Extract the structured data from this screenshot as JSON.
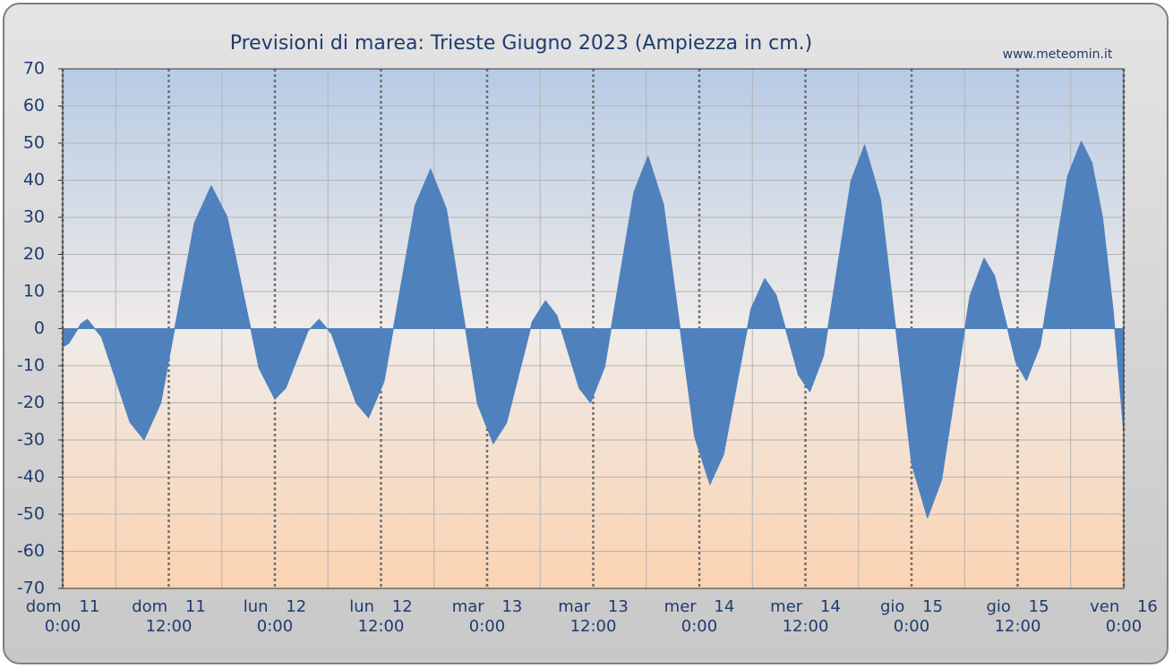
{
  "chart_data": {
    "type": "area",
    "title": "Previsioni di marea: Trieste Giugno 2023 (Ampiezza in cm.)",
    "source": "www.meteomin.it",
    "color": "#4f81bd",
    "x": [
      0,
      0.7,
      1.4,
      2.1,
      2.8,
      4.4,
      6.0,
      7.6,
      9.2,
      11.1,
      13.0,
      14.9,
      16.8,
      18.6,
      20.4,
      22.2,
      24.0,
      25.25,
      26.5,
      27.75,
      29.0,
      30.4,
      31.8,
      33.2,
      34.6,
      36.35,
      38.1,
      39.85,
      41.6,
      43.4,
      45.15,
      46.9,
      48.7,
      50.2,
      51.65,
      53.1,
      54.6,
      55.9,
      57.15,
      58.4,
      59.7,
      61.3,
      62.95,
      64.6,
      66.2,
      67.95,
      69.7,
      71.45,
      73.2,
      74.75,
      76.3,
      77.85,
      79.4,
      80.7,
      81.95,
      83.2,
      84.5,
      86.05,
      87.6,
      89.15,
      90.7,
      92.5,
      94.25,
      96.0,
      97.8,
      99.4,
      101.0,
      102.6,
      104.2,
      105.4,
      106.6,
      107.8,
      109.0,
      110.55,
      112.1,
      113.65,
      115.2,
      116.4,
      117.6,
      118.8,
      120
    ],
    "values": [
      -5,
      -3.9,
      -1.25,
      1.4,
      2.5,
      -2.3,
      -13.75,
      -25.2,
      -30,
      -20,
      4.25,
      28.5,
      38.5,
      30.1,
      9.75,
      -10.6,
      -19,
      -15.9,
      -8.25,
      -0.6,
      2.5,
      -1.4,
      -10.75,
      -20.1,
      -24,
      -14.2,
      9.5,
      33.2,
      43,
      32.2,
      6,
      -20.2,
      -31,
      -25.4,
      -11.75,
      1.9,
      7.5,
      3.5,
      -6.25,
      -16,
      -20,
      -10.3,
      13.25,
      36.8,
      46.5,
      33.5,
      2.25,
      -29,
      -42,
      -33.9,
      -14.25,
      5.4,
      13.5,
      9,
      -1.75,
      -12.5,
      -17,
      -7.3,
      16.25,
      39.8,
      49.5,
      34.8,
      -0.75,
      -36.3,
      -51,
      -40.8,
      -16,
      8.8,
      19,
      14.2,
      2.5,
      -9.2,
      -14,
      -4.6,
      18.25,
      41.1,
      50.5,
      44.7,
      30,
      5,
      -28
    ],
    "xlim": [
      0,
      120
    ],
    "ylim": [
      -70,
      70
    ],
    "yticks": [
      -70,
      -60,
      -50,
      -40,
      -30,
      -20,
      -10,
      0,
      10,
      20,
      30,
      40,
      50,
      60,
      70
    ],
    "xticks": [
      {
        "value": 0,
        "label": [
          "dom 11",
          "0:00"
        ]
      },
      {
        "value": 12,
        "label": [
          "dom 11",
          "12:00"
        ]
      },
      {
        "value": 24,
        "label": [
          "lun 12",
          "0:00"
        ]
      },
      {
        "value": 36,
        "label": [
          "lun 12",
          "12:00"
        ]
      },
      {
        "value": 48,
        "label": [
          "mar 13",
          "0:00"
        ]
      },
      {
        "value": 60,
        "label": [
          "mar 13",
          "12:00"
        ]
      },
      {
        "value": 72,
        "label": [
          "mer 14",
          "0:00"
        ]
      },
      {
        "value": 84,
        "label": [
          "mer 14",
          "12:00"
        ]
      },
      {
        "value": 96,
        "label": [
          "gio 15",
          "0:00"
        ]
      },
      {
        "value": 108,
        "label": [
          "gio 15",
          "12:00"
        ]
      },
      {
        "value": 120,
        "label": [
          "ven 16",
          "0:00"
        ]
      }
    ],
    "xminorticks": [
      6,
      18,
      30,
      42,
      54,
      66,
      78,
      90,
      102,
      114
    ],
    "grid": true
  }
}
